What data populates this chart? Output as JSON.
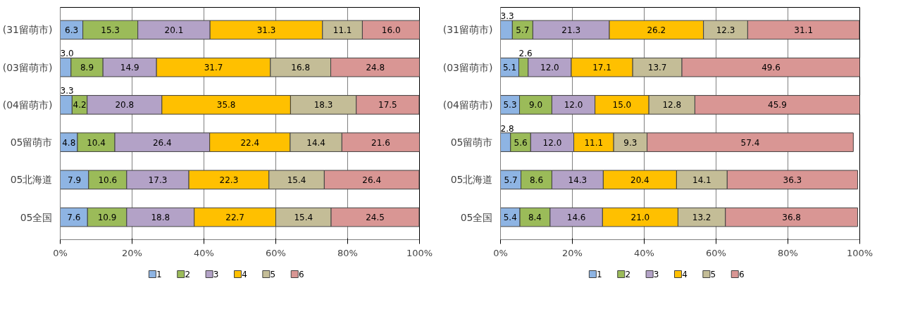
{
  "chart_data": [
    {
      "type": "bar",
      "orientation": "horizontal",
      "stacked": true,
      "categories": [
        "(31留萌市)",
        "(03留萌市)",
        "(04留萌市)",
        "05留萌市",
        "05北海道",
        "05全国"
      ],
      "series": [
        {
          "name": "1",
          "color": "#8eb4e3",
          "values": [
            6.3,
            3.0,
            3.3,
            4.8,
            7.9,
            7.6
          ],
          "value_labels": [
            "6.3",
            "3.0",
            "3.3",
            "4.8",
            "7.9",
            "7.6"
          ]
        },
        {
          "name": "2",
          "color": "#9bbb59",
          "values": [
            15.3,
            8.9,
            4.2,
            10.4,
            10.6,
            10.9
          ],
          "value_labels": [
            "15.3",
            "8.9",
            "4.2",
            "10.4",
            "10.6",
            "10.9"
          ]
        },
        {
          "name": "3",
          "color": "#b3a2c7",
          "values": [
            20.1,
            14.9,
            20.8,
            26.4,
            17.3,
            18.8
          ],
          "value_labels": [
            "20.1",
            "14.9",
            "20.8",
            "26.4",
            "17.3",
            "18.8"
          ]
        },
        {
          "name": "4",
          "color": "#ffc000",
          "values": [
            31.3,
            31.7,
            35.8,
            22.4,
            22.3,
            22.7
          ],
          "value_labels": [
            "31.3",
            "31.7",
            "35.8",
            "22.4",
            "22.3",
            "22.7"
          ]
        },
        {
          "name": "5",
          "color": "#c4bd97",
          "values": [
            11.1,
            16.8,
            18.3,
            14.4,
            15.4,
            15.4
          ],
          "value_labels": [
            "11.1",
            "16.8",
            "18.3",
            "14.4",
            "15.4",
            "15.4"
          ]
        },
        {
          "name": "6",
          "color": "#d99694",
          "values": [
            16.0,
            24.8,
            17.5,
            21.6,
            26.4,
            24.5
          ],
          "value_labels": [
            "16.0",
            "24.8",
            "17.5",
            "21.6",
            "26.4",
            "24.5"
          ]
        }
      ],
      "xlim": [
        0,
        100
      ],
      "xticks": [
        {
          "value": 0,
          "label": "0%"
        },
        {
          "value": 20,
          "label": "20%"
        },
        {
          "value": 40,
          "label": "40%"
        },
        {
          "value": 60,
          "label": "60%"
        },
        {
          "value": 80,
          "label": "80%"
        },
        {
          "value": 100,
          "label": "100%"
        }
      ],
      "grid": "x",
      "legend": "bottom"
    },
    {
      "type": "bar",
      "orientation": "horizontal",
      "stacked": true,
      "categories": [
        "(31留萌市)",
        "(03留萌市)",
        "(04留萌市)",
        "05留萌市",
        "05北海道",
        "05全国"
      ],
      "series": [
        {
          "name": "1",
          "color": "#8eb4e3",
          "values": [
            3.3,
            5.1,
            5.3,
            2.8,
            5.7,
            5.4
          ],
          "value_labels": [
            "3.3",
            "5.1",
            "5.3",
            "2.8",
            "5.7",
            "5.4"
          ]
        },
        {
          "name": "2",
          "color": "#9bbb59",
          "values": [
            5.7,
            2.6,
            9.0,
            5.6,
            8.6,
            8.4
          ],
          "value_labels": [
            "5.7",
            "2.6",
            "9.0",
            "5.6",
            "8.6",
            "8.4"
          ]
        },
        {
          "name": "3",
          "color": "#b3a2c7",
          "values": [
            21.3,
            12.0,
            12.0,
            12.0,
            14.3,
            14.6
          ],
          "value_labels": [
            "21.3",
            "12.0",
            "12.0",
            "12.0",
            "14.3",
            "14.6"
          ]
        },
        {
          "name": "4",
          "color": "#ffc000",
          "values": [
            26.2,
            17.1,
            15.0,
            11.1,
            20.4,
            21.0
          ],
          "value_labels": [
            "26.2",
            "17.1",
            "15.0",
            "11.1",
            "20.4",
            "21.0"
          ]
        },
        {
          "name": "5",
          "color": "#c4bd97",
          "values": [
            12.3,
            13.7,
            12.8,
            9.3,
            14.1,
            13.2
          ],
          "value_labels": [
            "12.3",
            "13.7",
            "12.8",
            "9.3",
            "14.1",
            "13.2"
          ]
        },
        {
          "name": "6",
          "color": "#d99694",
          "values": [
            31.1,
            49.6,
            45.9,
            57.4,
            36.3,
            36.8
          ],
          "value_labels": [
            "31.1",
            "49.6",
            "45.9",
            "57.4",
            "36.3",
            "36.8"
          ]
        }
      ],
      "xlim": [
        0,
        100
      ],
      "xticks": [
        {
          "value": 0,
          "label": "0%"
        },
        {
          "value": 20,
          "label": "20%"
        },
        {
          "value": 40,
          "label": "40%"
        },
        {
          "value": 60,
          "label": "60%"
        },
        {
          "value": 80,
          "label": "80%"
        },
        {
          "value": 100,
          "label": "100%"
        }
      ],
      "grid": "x",
      "legend": "bottom"
    }
  ]
}
